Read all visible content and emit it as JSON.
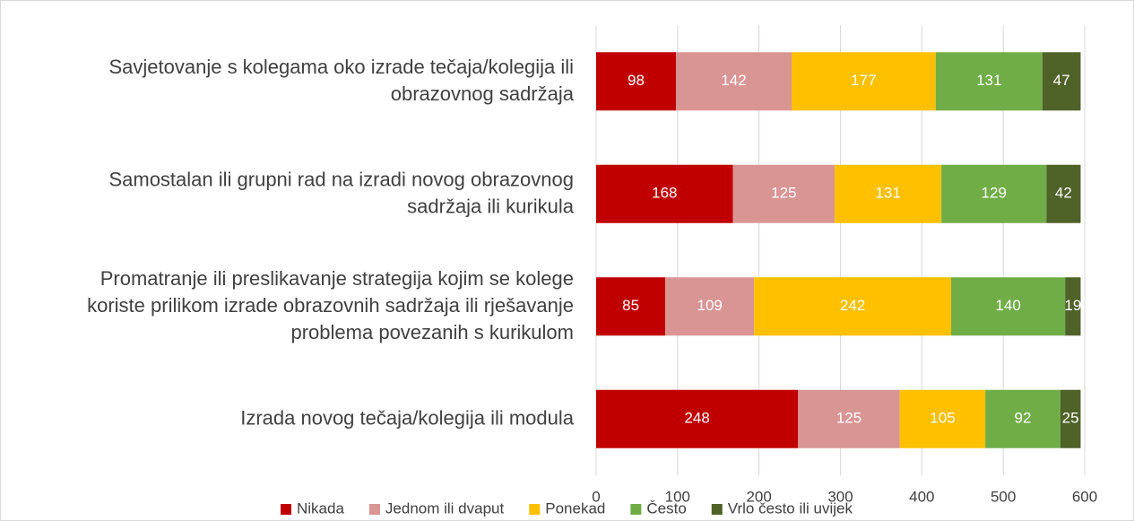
{
  "chart_data": {
    "type": "stacked_barh",
    "categories": [
      "Savjetovanje s kolegama oko izrade tečaja/kolegija ili obrazovnog sadržaja",
      "Samostalan ili grupni rad na izradi novog obrazovnog sadržaja ili kurikula",
      "Promatranje ili preslikavanje strategija kojim se kolege koriste prilikom izrade obrazovnih sadržaja ili rješavanje problema povezanih s kurikulom",
      "Izrada novog tečaja/kolegija ili modula"
    ],
    "series": [
      {
        "name": "Nikada",
        "color": "#c00000",
        "values": [
          98,
          168,
          85,
          248
        ]
      },
      {
        "name": "Jednom ili dvaput",
        "color": "#d99594",
        "values": [
          142,
          125,
          109,
          125
        ]
      },
      {
        "name": "Ponekad",
        "color": "#ffc000",
        "values": [
          177,
          131,
          242,
          105
        ]
      },
      {
        "name": "Često",
        "color": "#70ad47",
        "values": [
          131,
          129,
          140,
          92
        ]
      },
      {
        "name": "Vrlo često ili uvijek",
        "color": "#4f6228",
        "values": [
          47,
          42,
          19,
          25
        ]
      }
    ],
    "xlim": [
      0,
      600
    ],
    "xticks": [
      0,
      100,
      200,
      300,
      400,
      500,
      600
    ],
    "grid": true,
    "legend": "bottom"
  }
}
